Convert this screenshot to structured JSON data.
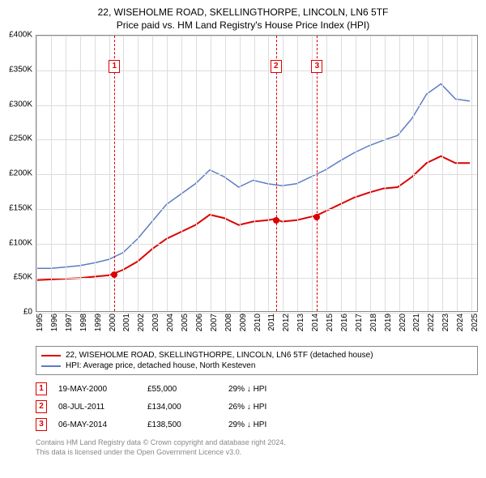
{
  "title": {
    "line1": "22, WISEHOLME ROAD, SKELLINGTHORPE, LINCOLN, LN6 5TF",
    "line2": "Price paid vs. HM Land Registry's House Price Index (HPI)"
  },
  "chart": {
    "type": "line",
    "background_color": "#ffffff",
    "grid_color": "#dddddd",
    "border_color": "#888888",
    "xlim": [
      1995,
      2025.5
    ],
    "ylim": [
      0,
      400000
    ],
    "ytick_step": 50000,
    "y_ticks": [
      "£0",
      "£50K",
      "£100K",
      "£150K",
      "£200K",
      "£250K",
      "£300K",
      "£350K",
      "£400K"
    ],
    "x_ticks": [
      1995,
      1996,
      1997,
      1998,
      1999,
      2000,
      2001,
      2002,
      2003,
      2004,
      2005,
      2006,
      2007,
      2008,
      2009,
      2010,
      2011,
      2012,
      2013,
      2014,
      2015,
      2016,
      2017,
      2018,
      2019,
      2020,
      2021,
      2022,
      2023,
      2024,
      2025
    ],
    "series": [
      {
        "name": "price_paid",
        "color": "#dc0000",
        "line_width": 2,
        "data": [
          [
            1995,
            45000
          ],
          [
            1996,
            46000
          ],
          [
            1997,
            47000
          ],
          [
            1998,
            48000
          ],
          [
            1999,
            50000
          ],
          [
            2000,
            52000
          ],
          [
            2000.4,
            55000
          ],
          [
            2001,
            60000
          ],
          [
            2002,
            72000
          ],
          [
            2003,
            90000
          ],
          [
            2004,
            105000
          ],
          [
            2005,
            115000
          ],
          [
            2006,
            125000
          ],
          [
            2007,
            140000
          ],
          [
            2008,
            135000
          ],
          [
            2009,
            125000
          ],
          [
            2010,
            130000
          ],
          [
            2011,
            132000
          ],
          [
            2011.5,
            134000
          ],
          [
            2012,
            130000
          ],
          [
            2013,
            132000
          ],
          [
            2014,
            137000
          ],
          [
            2014.35,
            138500
          ],
          [
            2015,
            145000
          ],
          [
            2016,
            155000
          ],
          [
            2017,
            165000
          ],
          [
            2018,
            172000
          ],
          [
            2019,
            178000
          ],
          [
            2020,
            180000
          ],
          [
            2021,
            195000
          ],
          [
            2022,
            215000
          ],
          [
            2023,
            225000
          ],
          [
            2024,
            215000
          ],
          [
            2025,
            215000
          ]
        ]
      },
      {
        "name": "hpi",
        "color": "#5b7cc4",
        "line_width": 1.5,
        "data": [
          [
            1995,
            62000
          ],
          [
            1996,
            62000
          ],
          [
            1997,
            64000
          ],
          [
            1998,
            66000
          ],
          [
            1999,
            70000
          ],
          [
            2000,
            75000
          ],
          [
            2001,
            85000
          ],
          [
            2002,
            105000
          ],
          [
            2003,
            130000
          ],
          [
            2004,
            155000
          ],
          [
            2005,
            170000
          ],
          [
            2006,
            185000
          ],
          [
            2007,
            205000
          ],
          [
            2008,
            195000
          ],
          [
            2009,
            180000
          ],
          [
            2010,
            190000
          ],
          [
            2011,
            185000
          ],
          [
            2012,
            182000
          ],
          [
            2013,
            185000
          ],
          [
            2014,
            195000
          ],
          [
            2015,
            205000
          ],
          [
            2016,
            218000
          ],
          [
            2017,
            230000
          ],
          [
            2018,
            240000
          ],
          [
            2019,
            248000
          ],
          [
            2020,
            255000
          ],
          [
            2021,
            280000
          ],
          [
            2022,
            315000
          ],
          [
            2023,
            330000
          ],
          [
            2024,
            308000
          ],
          [
            2025,
            305000
          ]
        ]
      }
    ],
    "markers": [
      {
        "n": "1",
        "year": 2000.38,
        "price": 55000,
        "color": "#dc0000"
      },
      {
        "n": "2",
        "year": 2011.52,
        "price": 134000,
        "color": "#dc0000"
      },
      {
        "n": "3",
        "year": 2014.35,
        "price": 138500,
        "color": "#dc0000"
      }
    ]
  },
  "legend": {
    "items": [
      {
        "color": "#dc0000",
        "label": "22, WISEHOLME ROAD, SKELLINGTHORPE, LINCOLN, LN6 5TF (detached house)"
      },
      {
        "color": "#5b7cc4",
        "label": "HPI: Average price, detached house, North Kesteven"
      }
    ]
  },
  "sales": [
    {
      "n": "1",
      "date": "19-MAY-2000",
      "price": "£55,000",
      "delta": "29% ↓ HPI",
      "color": "#dc0000"
    },
    {
      "n": "2",
      "date": "08-JUL-2011",
      "price": "£134,000",
      "delta": "26% ↓ HPI",
      "color": "#dc0000"
    },
    {
      "n": "3",
      "date": "06-MAY-2014",
      "price": "£138,500",
      "delta": "29% ↓ HPI",
      "color": "#dc0000"
    }
  ],
  "footer": {
    "line1": "Contains HM Land Registry data © Crown copyright and database right 2024.",
    "line2": "This data is licensed under the Open Government Licence v3.0."
  }
}
